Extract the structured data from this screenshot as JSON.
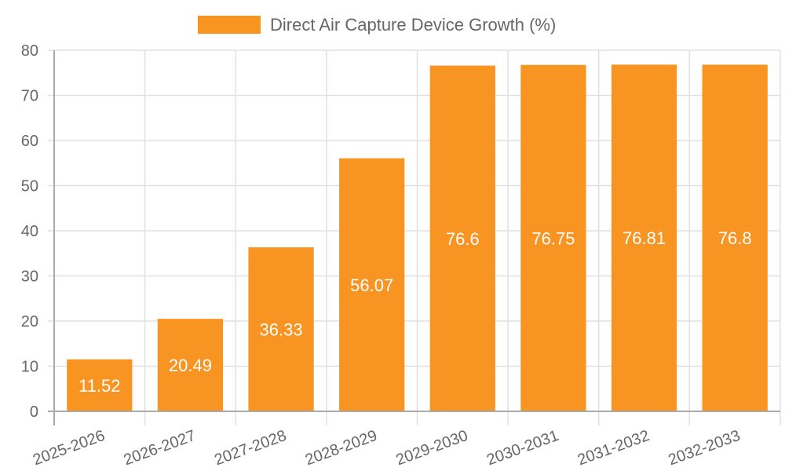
{
  "chart_data": {
    "type": "bar",
    "title": "",
    "xlabel": "",
    "ylabel": "",
    "legend": {
      "label": "Direct Air Capture Device Growth (%)",
      "position": "top"
    },
    "categories": [
      "2025-2026",
      "2026-2027",
      "2027-2028",
      "2028-2029",
      "2029-2030",
      "2030-2031",
      "2031-2032",
      "2032-2033"
    ],
    "series": [
      {
        "name": "Direct Air Capture Device Growth (%)",
        "values": [
          11.52,
          20.49,
          36.33,
          56.07,
          76.6,
          76.75,
          76.81,
          76.8
        ],
        "color": "#f79422"
      }
    ],
    "data_labels": [
      "11.52",
      "20.49",
      "36.33",
      "56.07",
      "76.6",
      "76.75",
      "76.81",
      "76.8"
    ],
    "ylim": [
      0,
      80
    ],
    "yticks": [
      "0",
      "10",
      "20",
      "30",
      "40",
      "50",
      "60",
      "70",
      "80"
    ],
    "grid": true
  }
}
